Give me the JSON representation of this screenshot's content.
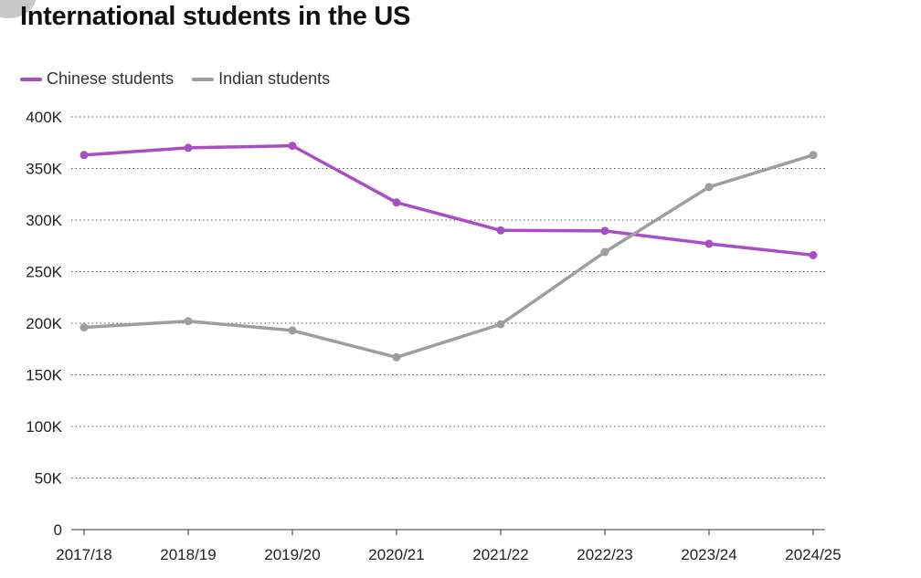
{
  "chart_data": {
    "type": "line",
    "title": "International students in the US",
    "xlabel": "",
    "ylabel": "",
    "categories": [
      "2017/18",
      "2018/19",
      "2019/20",
      "2020/21",
      "2021/22",
      "2022/23",
      "2023/24",
      "2024/25"
    ],
    "series": [
      {
        "name": "Chinese students",
        "color": "#a94fc6",
        "values": [
          363000,
          370000,
          372000,
          317000,
          290000,
          289500,
          277000,
          266000
        ]
      },
      {
        "name": "Indian students",
        "color": "#9e9e9e",
        "values": [
          196000,
          202000,
          193000,
          167000,
          199000,
          269000,
          332000,
          363000
        ]
      }
    ],
    "ylim": [
      0,
      400000
    ],
    "yticks": [
      0,
      50000,
      100000,
      150000,
      200000,
      250000,
      300000,
      350000,
      400000
    ],
    "ytick_labels": [
      "0",
      "50K",
      "100K",
      "150K",
      "200K",
      "250K",
      "300K",
      "350K",
      "400K"
    ],
    "grid": "horizontal dotted",
    "legend": "top-left"
  }
}
